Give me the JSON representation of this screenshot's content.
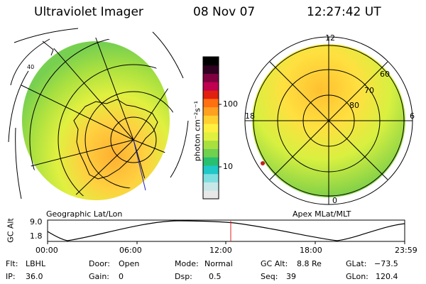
{
  "header": {
    "instrument": "Ultraviolet Imager",
    "date": "08 Nov 07",
    "time": "12:27:42 UT"
  },
  "left_map": {
    "caption": "Geographic Lat/Lon",
    "lat_label": "40"
  },
  "right_map": {
    "caption": "Apex MLat/MLT",
    "mlt_top": "12",
    "mlt_left": "18",
    "mlt_right": "6",
    "mlt_bottom": "0",
    "ring_labels": [
      "60",
      "70",
      "80"
    ]
  },
  "colorbar": {
    "unit_label": "photon cm⁻²s⁻¹",
    "tick_100": "100",
    "tick_10": "10",
    "colors": [
      "#e8e8e8",
      "#c8e8e8",
      "#7fdfe0",
      "#20c8c8",
      "#28c070",
      "#70d050",
      "#a8e040",
      "#e0f040",
      "#fff040",
      "#ffd030",
      "#ffa020",
      "#ff7010",
      "#e02010",
      "#c00050",
      "#800040",
      "#300020",
      "#000000"
    ]
  },
  "altitude_panel": {
    "axis_title": "GC Alt",
    "y_ticks": [
      "9.0",
      "1.8"
    ],
    "x_ticks": [
      "00:00",
      "06:00",
      "12:00",
      "18:00",
      "23:59"
    ]
  },
  "status": {
    "flt_label": "Flt:",
    "flt_value": "LBHL",
    "ip_label": "IP:",
    "ip_value": "36.0",
    "door_label": "Door:",
    "door_value": "Open",
    "gain_label": "Gain:",
    "gain_value": "0",
    "mode_label": "Mode:",
    "mode_value": "Normal",
    "dsp_label": "Dsp:",
    "dsp_value": "0.5",
    "gcalt_label": "GC Alt:",
    "gcalt_value": "8.8 Re",
    "seq_label": "Seq:",
    "seq_value": "39",
    "glat_label": "GLat:",
    "glat_value": "−73.5",
    "glon_label": "GLon:",
    "glon_value": "120.4"
  }
}
